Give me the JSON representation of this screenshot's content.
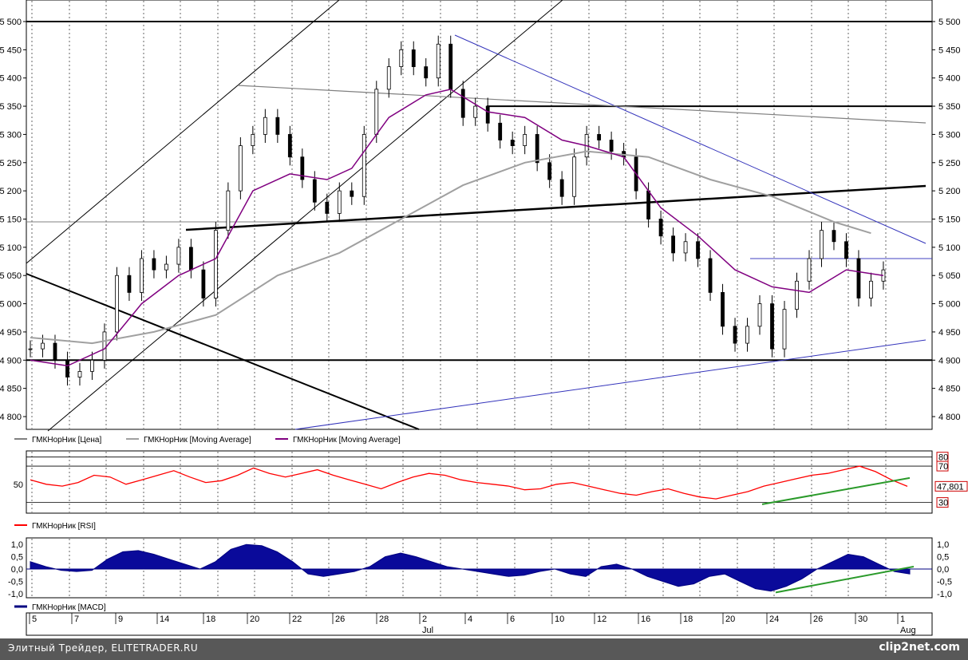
{
  "chart_data": [
    {
      "type": "candlestick",
      "panel": "price",
      "y_ticks": [
        "5 500",
        "5 450",
        "5 400",
        "5 350",
        "5 300",
        "5 250",
        "5 200",
        "5 150",
        "5 100",
        "5 050",
        "5 000",
        "4 950",
        "4 900",
        "4 850",
        "4 800"
      ],
      "ylim": [
        4780,
        5520
      ],
      "legend": [
        {
          "label": "ГМКНорНик [Цена]",
          "color": "#808080"
        },
        {
          "label": "ГМКНорНик [Moving Average]",
          "color": "#a0a0a0"
        },
        {
          "label": "ГМКНорНик [Moving Average]",
          "color": "#800080"
        }
      ],
      "price_path": [
        [
          0,
          4920
        ],
        [
          1,
          4930
        ],
        [
          2,
          4900
        ],
        [
          3,
          4870
        ],
        [
          4,
          4880
        ],
        [
          5,
          4900
        ],
        [
          6,
          4950
        ],
        [
          7,
          5050
        ],
        [
          8,
          5020
        ],
        [
          9,
          5080
        ],
        [
          10,
          5060
        ],
        [
          11,
          5070
        ],
        [
          12,
          5100
        ],
        [
          13,
          5060
        ],
        [
          14,
          5010
        ],
        [
          15,
          5130
        ],
        [
          16,
          5200
        ],
        [
          17,
          5280
        ],
        [
          18,
          5300
        ],
        [
          19,
          5330
        ],
        [
          20,
          5300
        ],
        [
          21,
          5260
        ],
        [
          22,
          5220
        ],
        [
          23,
          5180
        ],
        [
          24,
          5160
        ],
        [
          25,
          5200
        ],
        [
          26,
          5190
        ],
        [
          27,
          5300
        ],
        [
          28,
          5380
        ],
        [
          29,
          5420
        ],
        [
          30,
          5450
        ],
        [
          31,
          5420
        ],
        [
          32,
          5400
        ],
        [
          33,
          5460
        ],
        [
          34,
          5380
        ],
        [
          35,
          5330
        ],
        [
          36,
          5350
        ],
        [
          37,
          5320
        ],
        [
          38,
          5290
        ],
        [
          39,
          5280
        ],
        [
          40,
          5300
        ],
        [
          41,
          5250
        ],
        [
          42,
          5220
        ],
        [
          43,
          5190
        ],
        [
          44,
          5260
        ],
        [
          45,
          5300
        ],
        [
          46,
          5290
        ],
        [
          47,
          5270
        ],
        [
          48,
          5260
        ],
        [
          49,
          5200
        ],
        [
          50,
          5150
        ],
        [
          51,
          5120
        ],
        [
          52,
          5090
        ],
        [
          53,
          5110
        ],
        [
          54,
          5080
        ],
        [
          55,
          5020
        ],
        [
          56,
          4960
        ],
        [
          57,
          4930
        ],
        [
          58,
          4960
        ],
        [
          59,
          5000
        ],
        [
          60,
          4920
        ],
        [
          61,
          4990
        ],
        [
          62,
          5040
        ],
        [
          63,
          5080
        ],
        [
          64,
          5130
        ],
        [
          65,
          5110
        ],
        [
          66,
          5080
        ],
        [
          67,
          5010
        ],
        [
          68,
          5040
        ],
        [
          69,
          5060
        ]
      ],
      "moving_average_200": [
        [
          0,
          4940
        ],
        [
          5,
          4930
        ],
        [
          10,
          4950
        ],
        [
          15,
          4980
        ],
        [
          20,
          5050
        ],
        [
          25,
          5090
        ],
        [
          30,
          5150
        ],
        [
          35,
          5210
        ],
        [
          40,
          5250
        ],
        [
          45,
          5270
        ],
        [
          50,
          5260
        ],
        [
          55,
          5220
        ],
        [
          60,
          5190
        ],
        [
          65,
          5145
        ],
        [
          68,
          5125
        ]
      ],
      "moving_average_50": [
        [
          0,
          4900
        ],
        [
          3,
          4890
        ],
        [
          6,
          4920
        ],
        [
          9,
          5000
        ],
        [
          12,
          5050
        ],
        [
          15,
          5080
        ],
        [
          18,
          5200
        ],
        [
          21,
          5230
        ],
        [
          24,
          5220
        ],
        [
          26,
          5240
        ],
        [
          29,
          5330
        ],
        [
          32,
          5370
        ],
        [
          34,
          5380
        ],
        [
          37,
          5340
        ],
        [
          40,
          5330
        ],
        [
          43,
          5290
        ],
        [
          45,
          5280
        ],
        [
          48,
          5260
        ],
        [
          51,
          5170
        ],
        [
          54,
          5120
        ],
        [
          57,
          5060
        ],
        [
          60,
          5030
        ],
        [
          63,
          5020
        ],
        [
          66,
          5060
        ],
        [
          69,
          5050
        ]
      ],
      "horizontal_lines": [
        5500,
        5350,
        5145,
        5080,
        4900
      ]
    },
    {
      "type": "line",
      "panel": "rsi",
      "legend": {
        "label": "ГМКНорНик [RSI]",
        "color": "#ff0000"
      },
      "y_ticks": [
        "50"
      ],
      "levels": [
        "80",
        "70",
        "30"
      ],
      "last_value": "47,801",
      "ylim": [
        20,
        85
      ],
      "values": [
        55,
        50,
        48,
        52,
        60,
        58,
        50,
        55,
        60,
        65,
        58,
        52,
        54,
        60,
        68,
        62,
        58,
        62,
        66,
        60,
        55,
        50,
        45,
        52,
        58,
        62,
        60,
        55,
        52,
        50,
        48,
        44,
        45,
        50,
        52,
        48,
        44,
        40,
        38,
        42,
        45,
        40,
        36,
        34,
        38,
        42,
        48,
        52,
        56,
        60,
        62,
        66,
        70,
        64,
        55,
        47.8
      ]
    },
    {
      "type": "area",
      "panel": "macd",
      "legend": {
        "label": "ГМКНорНик [MACD]",
        "color": "#000080"
      },
      "y_ticks": [
        "1,0",
        "0,5",
        "0,0",
        "-0,5",
        "-1,0"
      ],
      "ylim": [
        -1.1,
        1.2
      ],
      "values": [
        0.3,
        0.1,
        -0.05,
        -0.1,
        -0.05,
        0.4,
        0.7,
        0.75,
        0.6,
        0.4,
        0.2,
        0.0,
        0.3,
        0.8,
        1.0,
        0.95,
        0.7,
        0.3,
        -0.2,
        -0.3,
        -0.2,
        -0.1,
        0.1,
        0.5,
        0.65,
        0.5,
        0.3,
        0.1,
        0.0,
        -0.1,
        -0.2,
        -0.3,
        -0.25,
        -0.1,
        0.0,
        -0.2,
        -0.3,
        0.1,
        0.2,
        0.0,
        -0.3,
        -0.5,
        -0.7,
        -0.6,
        -0.3,
        -0.2,
        -0.5,
        -0.8,
        -0.9,
        -0.7,
        -0.4,
        0.0,
        0.3,
        0.6,
        0.5,
        0.2,
        -0.1,
        -0.2
      ]
    }
  ],
  "x_axis": {
    "day_ticks": [
      "5",
      "7",
      "9",
      "14",
      "18",
      "20",
      "22",
      "26",
      "28",
      "2",
      "4",
      "6",
      "10",
      "12",
      "16",
      "18",
      "20",
      "24",
      "26",
      "30",
      "1"
    ],
    "month_ticks": [
      {
        "label": "Jul",
        "after": "2"
      },
      {
        "label": "Aug",
        "after": "1"
      }
    ]
  },
  "footer": {
    "left": "Элитный Трейдер, ELITETRADER.RU",
    "right": "clip2net.com"
  }
}
